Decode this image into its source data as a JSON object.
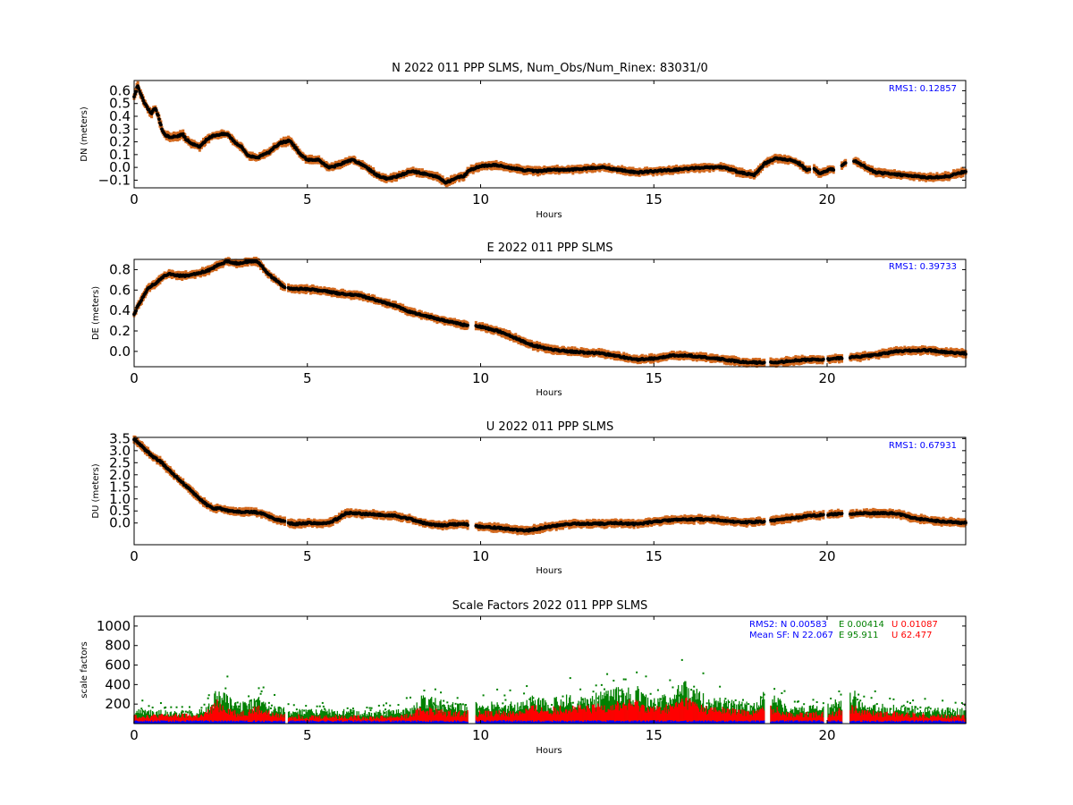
{
  "chart_data": [
    {
      "id": "north",
      "type": "scatter",
      "title": "N 2022 011 PPP  SLMS, Num_Obs/Num_Rinex: 83031/0",
      "xlabel": "Hours",
      "ylabel": "DN (meters)",
      "xlim": [
        0,
        24
      ],
      "ylim": [
        -0.16,
        0.68
      ],
      "xticks": [
        "0",
        "5",
        "10",
        "15",
        "20"
      ],
      "yticks": [
        "0.6",
        "0.5",
        "0.4",
        "0.3",
        "0.2",
        "0.1",
        "0.0",
        "−0.1"
      ],
      "yticks_values": [
        0.6,
        0.5,
        0.4,
        0.3,
        0.2,
        0.1,
        0.0,
        -0.1
      ],
      "grid": false,
      "annotations": [
        {
          "text": "RMS1:  0.12857",
          "color": "#0000ff",
          "position": "top-right"
        }
      ],
      "series": [
        {
          "color_marker": "#000000",
          "color_error": "#d2691e",
          "x": [
            0,
            0.1,
            0.3,
            0.5,
            0.6,
            0.7,
            0.8,
            0.9,
            1.0,
            1.2,
            1.4,
            1.5,
            1.7,
            1.9,
            2.1,
            2.3,
            2.5,
            2.7,
            2.9,
            3.1,
            3.3,
            3.6,
            3.9,
            4.2,
            4.5,
            4.8,
            5.0,
            5.3,
            5.6,
            5.8,
            6.0,
            6.3,
            6.7,
            7.0,
            7.3,
            7.6,
            8.0,
            8.4,
            8.8,
            9.0,
            9.3,
            9.5,
            9.7,
            10.0,
            10.4,
            10.8,
            11.2,
            11.6,
            12.0,
            12.5,
            13.0,
            13.5,
            14.0,
            14.5,
            15.0,
            15.5,
            16.0,
            16.5,
            17.0,
            17.5,
            17.9,
            18.2,
            18.5,
            18.9,
            19.2,
            19.4,
            19.6,
            19.8,
            20.1,
            20.3,
            20.5,
            20.8,
            21.0,
            21.4,
            21.8,
            22.2,
            22.6,
            23.0,
            23.5,
            24.0
          ],
          "y": [
            0.55,
            0.64,
            0.5,
            0.42,
            0.47,
            0.4,
            0.3,
            0.25,
            0.24,
            0.24,
            0.26,
            0.22,
            0.18,
            0.16,
            0.22,
            0.25,
            0.26,
            0.26,
            0.2,
            0.16,
            0.09,
            0.08,
            0.12,
            0.19,
            0.21,
            0.1,
            0.06,
            0.06,
            0.0,
            0.01,
            0.03,
            0.06,
            0.0,
            -0.06,
            -0.09,
            -0.07,
            -0.03,
            -0.05,
            -0.08,
            -0.12,
            -0.08,
            -0.07,
            -0.02,
            0.01,
            0.02,
            0.0,
            -0.02,
            -0.03,
            -0.02,
            -0.02,
            -0.01,
            0.0,
            -0.02,
            -0.04,
            -0.03,
            -0.02,
            -0.01,
            0.0,
            0.0,
            -0.04,
            -0.06,
            0.03,
            0.07,
            0.06,
            0.03,
            -0.02,
            0.0,
            -0.05,
            -0.01,
            -0.03,
            0.03,
            0.05,
            0.02,
            -0.04,
            -0.05,
            -0.06,
            -0.07,
            -0.08,
            -0.07,
            -0.03
          ],
          "gaps": [
            [
              19.5,
              19.62
            ],
            [
              20.2,
              20.4
            ],
            [
              20.55,
              20.75
            ]
          ]
        }
      ]
    },
    {
      "id": "east",
      "type": "scatter",
      "title": "E 2022 011 PPP  SLMS",
      "xlabel": "Hours",
      "ylabel": "DE (meters)",
      "xlim": [
        0,
        24
      ],
      "ylim": [
        -0.15,
        0.9
      ],
      "xticks": [
        "0",
        "5",
        "10",
        "15",
        "20"
      ],
      "yticks": [
        "0.8",
        "0.6",
        "0.4",
        "0.2",
        "0.0"
      ],
      "yticks_values": [
        0.8,
        0.6,
        0.4,
        0.2,
        0.0
      ],
      "grid": false,
      "annotations": [
        {
          "text": "RMS1:  0.39733",
          "color": "#0000ff",
          "position": "top-right"
        }
      ],
      "series": [
        {
          "color_marker": "#000000",
          "color_error": "#d2691e",
          "x": [
            0,
            0.2,
            0.4,
            0.6,
            0.8,
            1.0,
            1.3,
            1.6,
            1.9,
            2.2,
            2.5,
            2.7,
            3.0,
            3.3,
            3.6,
            3.8,
            4.0,
            4.3,
            4.5,
            5.0,
            5.5,
            6.0,
            6.5,
            7.0,
            7.5,
            8.0,
            8.5,
            9.0,
            9.5,
            10.0,
            10.5,
            11.0,
            11.5,
            12.0,
            12.5,
            13.0,
            13.5,
            14.0,
            14.5,
            15.0,
            15.5,
            16.0,
            16.5,
            17.0,
            17.5,
            18.0,
            18.5,
            19.0,
            19.5,
            20.0,
            20.5,
            21.0,
            21.5,
            22.0,
            22.5,
            23.0,
            23.5,
            24.0
          ],
          "y": [
            0.37,
            0.5,
            0.62,
            0.66,
            0.72,
            0.76,
            0.74,
            0.74,
            0.77,
            0.8,
            0.86,
            0.88,
            0.86,
            0.88,
            0.87,
            0.78,
            0.72,
            0.64,
            0.61,
            0.61,
            0.59,
            0.56,
            0.55,
            0.5,
            0.45,
            0.38,
            0.34,
            0.3,
            0.26,
            0.24,
            0.2,
            0.13,
            0.06,
            0.02,
            0.0,
            -0.01,
            -0.02,
            -0.05,
            -0.08,
            -0.07,
            -0.04,
            -0.04,
            -0.06,
            -0.08,
            -0.1,
            -0.11,
            -0.11,
            -0.09,
            -0.08,
            -0.08,
            -0.06,
            -0.05,
            -0.03,
            0.0,
            0.01,
            0.01,
            -0.01,
            -0.02
          ],
          "gaps": [
            [
              4.35,
              4.45
            ],
            [
              9.65,
              9.85
            ],
            [
              18.2,
              18.35
            ],
            [
              19.9,
              20.0
            ],
            [
              20.45,
              20.65
            ]
          ]
        }
      ]
    },
    {
      "id": "up",
      "type": "scatter",
      "title": "U 2022 011 PPP  SLMS",
      "xlabel": "Hours",
      "ylabel": "DU (meters)",
      "xlim": [
        0,
        24
      ],
      "ylim": [
        -0.9,
        3.55
      ],
      "xticks": [
        "0",
        "5",
        "10",
        "15",
        "20"
      ],
      "yticks": [
        "3.5",
        "3.0",
        "2.5",
        "2.0",
        "1.5",
        "1.0",
        "0.5",
        "0.0"
      ],
      "yticks_values": [
        3.5,
        3.0,
        2.5,
        2.0,
        1.5,
        1.0,
        0.5,
        0.0
      ],
      "grid": false,
      "annotations": [
        {
          "text": "RMS1:  0.67931",
          "color": "#0000ff",
          "position": "top-right"
        }
      ],
      "series": [
        {
          "color_marker": "#000000",
          "color_error": "#d2691e",
          "x": [
            0,
            0.2,
            0.5,
            0.8,
            1.0,
            1.3,
            1.6,
            1.9,
            2.1,
            2.3,
            2.5,
            2.8,
            3.2,
            3.5,
            3.8,
            4.0,
            4.3,
            4.6,
            5.0,
            5.3,
            5.6,
            5.9,
            6.1,
            6.3,
            6.6,
            7.0,
            7.5,
            8.0,
            8.5,
            8.9,
            9.2,
            9.6,
            10.0,
            10.5,
            11.0,
            11.3,
            11.6,
            12.0,
            12.5,
            13.0,
            13.5,
            14.0,
            14.5,
            15.0,
            15.5,
            16.0,
            16.5,
            17.0,
            17.5,
            18.0,
            18.5,
            19.0,
            19.5,
            20.0,
            20.5,
            21.0,
            21.5,
            22.0,
            22.5,
            23.0,
            23.5,
            24.0
          ],
          "y": [
            3.45,
            3.2,
            2.8,
            2.5,
            2.2,
            1.8,
            1.4,
            1.0,
            0.75,
            0.6,
            0.6,
            0.48,
            0.45,
            0.45,
            0.35,
            0.2,
            0.07,
            -0.05,
            0.0,
            -0.02,
            0.0,
            0.2,
            0.4,
            0.42,
            0.38,
            0.35,
            0.3,
            0.15,
            -0.05,
            -0.1,
            -0.05,
            -0.05,
            -0.15,
            -0.2,
            -0.28,
            -0.32,
            -0.25,
            -0.15,
            -0.05,
            -0.02,
            -0.03,
            0.0,
            -0.05,
            0.05,
            0.12,
            0.15,
            0.15,
            0.1,
            0.02,
            0.05,
            0.1,
            0.2,
            0.3,
            0.35,
            0.38,
            0.4,
            0.4,
            0.4,
            0.2,
            0.1,
            0.05,
            0.0
          ],
          "gaps": [
            [
              4.35,
              4.45
            ],
            [
              9.65,
              9.85
            ],
            [
              18.2,
              18.35
            ],
            [
              19.9,
              20.0
            ],
            [
              20.45,
              20.65
            ]
          ]
        }
      ]
    },
    {
      "id": "scale",
      "type": "bar",
      "title": "Scale Factors 2022 011 PPP  SLMS",
      "xlabel": "Hours",
      "ylabel": "scale factors",
      "xlim": [
        0,
        24
      ],
      "ylim": [
        0,
        1100
      ],
      "xticks": [
        "0",
        "5",
        "10",
        "15",
        "20"
      ],
      "yticks": [
        "1000",
        "800",
        "600",
        "400",
        "200"
      ],
      "yticks_values": [
        1000,
        800,
        600,
        400,
        200
      ],
      "grid": false,
      "legend_text": {
        "rms2_label": "RMS2: N  0.00583",
        "rms2_e": "E  0.00414",
        "rms2_u": "U  0.01087",
        "mean_label": "Mean SF: N  22.067",
        "mean_e": "E  95.911",
        "mean_u": "U  62.477"
      },
      "series": [
        {
          "color": "#008000",
          "profile_x": [
            0,
            2,
            2.4,
            3,
            3.6,
            4,
            5,
            6,
            7,
            8,
            8.3,
            9,
            10,
            11,
            11.5,
            12,
            12.5,
            13,
            13.5,
            14,
            14.5,
            15,
            15.5,
            15.9,
            16.5,
            17,
            17.5,
            18,
            18.2,
            19,
            20,
            20.8,
            21,
            22,
            23,
            24
          ],
          "profile_y": [
            130,
            130,
            330,
            180,
            250,
            160,
            130,
            140,
            120,
            150,
            270,
            200,
            200,
            200,
            260,
            220,
            280,
            240,
            300,
            330,
            350,
            250,
            280,
            450,
            250,
            230,
            200,
            210,
            300,
            160,
            180,
            300,
            200,
            170,
            150,
            140
          ]
        },
        {
          "color": "#ff0000",
          "profile_x": [
            0,
            2,
            2.4,
            3,
            3.6,
            4,
            5,
            6,
            7,
            8,
            8.3,
            9,
            10,
            11,
            11.5,
            12,
            12.5,
            13,
            13.5,
            14,
            14.5,
            15,
            15.5,
            15.9,
            16.5,
            17,
            17.5,
            18,
            18.2,
            19,
            20,
            20.8,
            21,
            22,
            23,
            24
          ],
          "profile_y": [
            90,
            90,
            220,
            110,
            170,
            100,
            80,
            80,
            70,
            90,
            170,
            120,
            120,
            120,
            170,
            150,
            180,
            160,
            190,
            210,
            220,
            160,
            180,
            260,
            160,
            150,
            130,
            130,
            190,
            100,
            110,
            190,
            130,
            110,
            90,
            80
          ]
        },
        {
          "color": "#0000ff",
          "profile_x": [
            0,
            24
          ],
          "profile_y": [
            30,
            30
          ]
        }
      ],
      "gaps": [
        [
          4.35,
          4.45
        ],
        [
          9.65,
          9.85
        ],
        [
          18.2,
          18.35
        ],
        [
          19.9,
          20.0
        ],
        [
          20.45,
          20.65
        ]
      ]
    }
  ]
}
